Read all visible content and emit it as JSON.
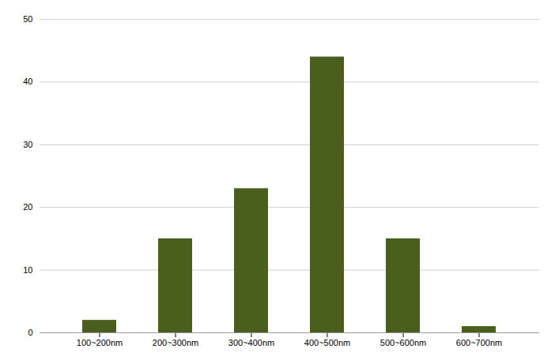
{
  "chart_data": {
    "type": "bar",
    "categories": [
      "100~200nm",
      "200~300nm",
      "300~400nm",
      "400~500nm",
      "500~600nm",
      "600~700nm"
    ],
    "values": [
      2,
      15,
      23,
      44,
      15,
      1
    ],
    "color": "#4a5e1e",
    "ylim": [
      0,
      50
    ],
    "yticks": [
      0,
      10,
      20,
      30,
      40,
      50
    ],
    "grid": true
  }
}
